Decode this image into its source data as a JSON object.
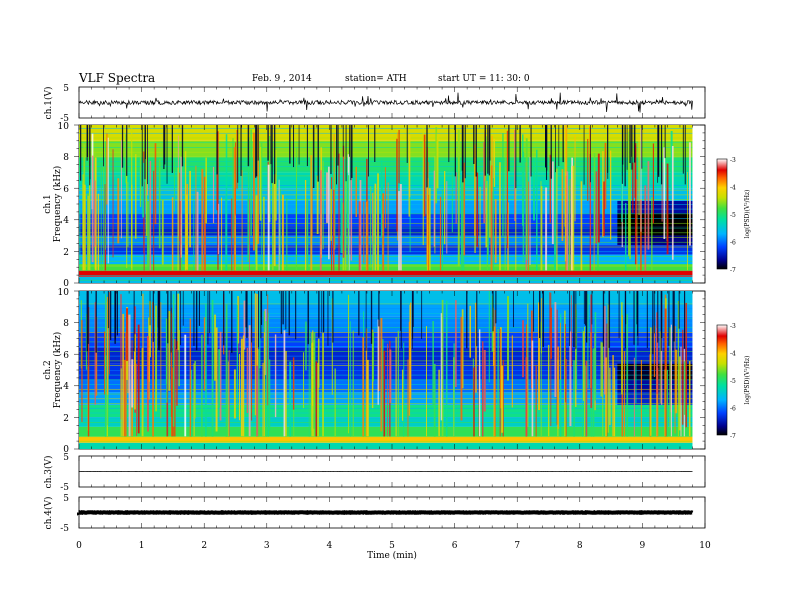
{
  "header": {
    "title": "VLF  Spectra",
    "date": "Feb. 9  , 2014",
    "station": "station= ATH",
    "start": "start  UT  =    11: 30: 0"
  },
  "colors": {
    "scale": [
      "#000000",
      "#0000c8",
      "#2050ff",
      "#00c8ff",
      "#00e0a0",
      "#40e040",
      "#c8e000",
      "#ffe000",
      "#ff8000",
      "#e00000",
      "#ff6060",
      "#ffffff"
    ]
  },
  "chart_data": [
    {
      "type": "line",
      "id": "ch1",
      "ylabel": "ch.1(V)",
      "ylim": [
        -5,
        5
      ],
      "yticks": [
        "5",
        "-5"
      ],
      "baseline": 0
    },
    {
      "type": "heatmap",
      "id": "spec1",
      "ylabel": "ch.1\nFrequency (kHz)",
      "ylabel_top": "ch.1",
      "ylabel_bottom": "Frequency  (kHz)",
      "ylim": [
        0,
        10
      ],
      "yticks": [
        "0",
        "2",
        "4",
        "6",
        "8",
        "10"
      ],
      "colorbar": {
        "label": "log(PSD)(V²/Hz)",
        "ticks": [
          "-3",
          "-4",
          "-5",
          "-6",
          "-7"
        ],
        "range": [
          -7,
          -3
        ]
      },
      "bands": [
        {
          "f": [
            0.0,
            0.4
          ],
          "v": -5.6
        },
        {
          "f": [
            0.4,
            0.8
          ],
          "v": -3.4
        },
        {
          "f": [
            0.8,
            1.2
          ],
          "v": -4.8
        },
        {
          "f": [
            1.2,
            1.8
          ],
          "v": -5.7
        },
        {
          "f": [
            1.8,
            2.4
          ],
          "v": -6.3
        },
        {
          "f": [
            2.4,
            3.0
          ],
          "v": -5.9
        },
        {
          "f": [
            3.0,
            3.6
          ],
          "v": -6.4
        },
        {
          "f": [
            3.6,
            4.4
          ],
          "v": -6.2
        },
        {
          "f": [
            4.4,
            5.2
          ],
          "v": -5.8
        },
        {
          "f": [
            5.2,
            6.0
          ],
          "v": -5.6
        },
        {
          "f": [
            6.0,
            7.0
          ],
          "v": -5.3
        },
        {
          "f": [
            7.0,
            8.0
          ],
          "v": -5.0
        },
        {
          "f": [
            8.0,
            9.0
          ],
          "v": -4.6
        },
        {
          "f": [
            9.0,
            10.0
          ],
          "v": -4.3
        }
      ]
    },
    {
      "type": "heatmap",
      "id": "spec2",
      "ylabel": "ch.2\nFrequency (kHz)",
      "ylabel_top": "ch.2",
      "ylabel_bottom": "Frequency  (kHz)",
      "ylim": [
        0,
        10
      ],
      "yticks": [
        "0",
        "2",
        "4",
        "6",
        "8",
        "10"
      ],
      "colorbar": {
        "label": "log(PSD)(V²/Hz)",
        "ticks": [
          "-3",
          "-4",
          "-5",
          "-6",
          "-7"
        ],
        "range": [
          -7,
          -3
        ]
      },
      "bands": [
        {
          "f": [
            0.0,
            0.4
          ],
          "v": -5.3
        },
        {
          "f": [
            0.4,
            0.8
          ],
          "v": -4.0
        },
        {
          "f": [
            0.8,
            1.4
          ],
          "v": -4.9
        },
        {
          "f": [
            1.4,
            2.0
          ],
          "v": -5.4
        },
        {
          "f": [
            2.0,
            2.8
          ],
          "v": -5.1
        },
        {
          "f": [
            2.8,
            3.6
          ],
          "v": -5.8
        },
        {
          "f": [
            3.6,
            4.4
          ],
          "v": -6.0
        },
        {
          "f": [
            4.4,
            5.4
          ],
          "v": -6.3
        },
        {
          "f": [
            5.4,
            6.4
          ],
          "v": -6.4
        },
        {
          "f": [
            6.4,
            7.4
          ],
          "v": -6.2
        },
        {
          "f": [
            7.4,
            8.4
          ],
          "v": -5.9
        },
        {
          "f": [
            8.4,
            9.2
          ],
          "v": -5.8
        },
        {
          "f": [
            9.2,
            10.0
          ],
          "v": -5.6
        }
      ]
    },
    {
      "type": "line",
      "id": "ch3",
      "ylabel": "ch.3(V)",
      "ylim": [
        -5,
        5
      ],
      "yticks": [
        "5",
        "-5"
      ],
      "baseline": 0
    },
    {
      "type": "line",
      "id": "ch4",
      "ylabel": "ch.4(V)",
      "ylim": [
        -5,
        5
      ],
      "yticks": [
        "5",
        "-5"
      ],
      "baseline": 0
    }
  ],
  "xaxis": {
    "label": "Time  (min)",
    "xlim": [
      0,
      10
    ],
    "ticks": [
      "0",
      "1",
      "2",
      "3",
      "4",
      "5",
      "6",
      "7",
      "8",
      "9",
      "10"
    ],
    "data_end": 9.8
  }
}
